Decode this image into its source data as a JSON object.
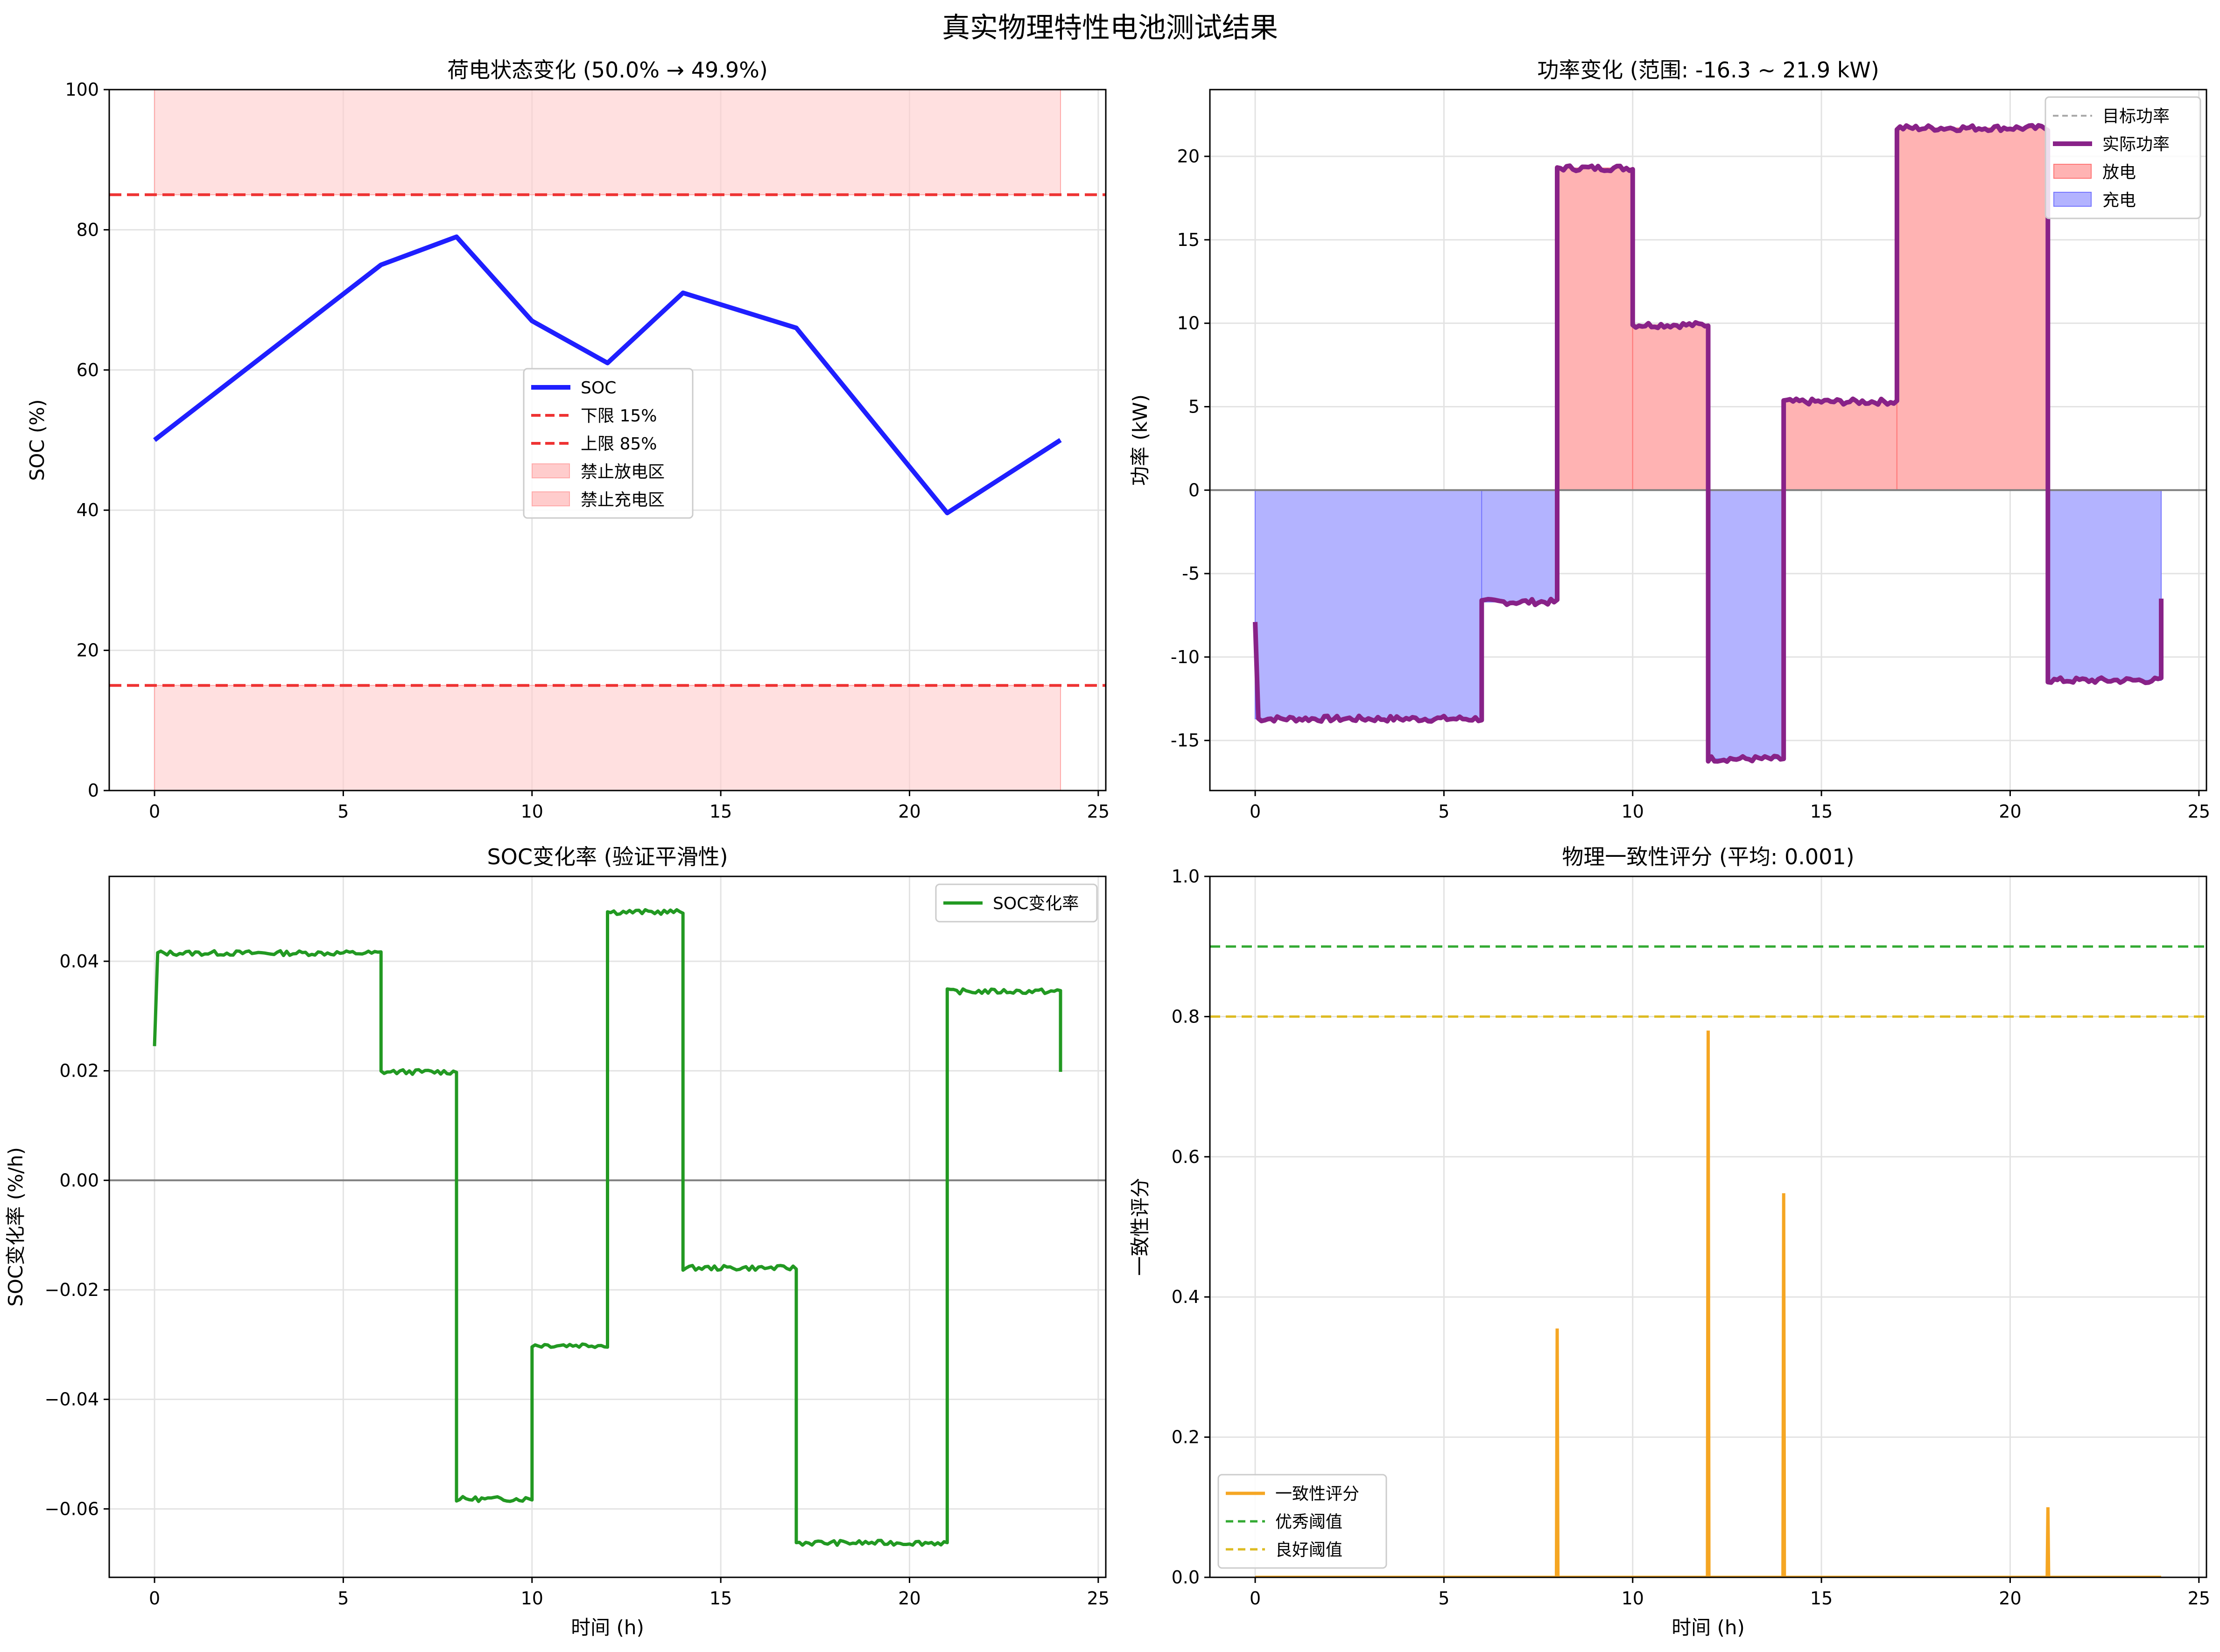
{
  "figure": {
    "title": "真实物理特性电池测试结果"
  },
  "chart_data": [
    {
      "id": "soc",
      "type": "line",
      "title": "荷电状态变化 (50.0% → 49.9%)",
      "xlabel": "",
      "ylabel": "SOC (%)",
      "xlim": [
        -1.2,
        25.2
      ],
      "ylim": [
        0,
        100
      ],
      "xticks": [
        0,
        5,
        10,
        15,
        20,
        25
      ],
      "yticks": [
        0,
        20,
        40,
        60,
        80,
        100
      ],
      "grid": true,
      "legend_position": "center",
      "series": [
        {
          "name": "SOC",
          "color": "#1f1fff",
          "x": [
            0,
            6,
            8,
            10,
            12,
            14,
            17,
            21,
            24
          ],
          "y": [
            50,
            75,
            79,
            67,
            61,
            71,
            66,
            39.6,
            50
          ]
        }
      ],
      "hlines": [
        {
          "name": "下限 15%",
          "y": 15,
          "color": "#ee3333",
          "style": "dashed"
        },
        {
          "name": "上限 85%",
          "y": 85,
          "color": "#ee3333",
          "style": "dashed"
        }
      ],
      "bands": [
        {
          "name": "禁止放电区",
          "x": [
            0,
            24
          ],
          "y": [
            0,
            15
          ],
          "color": "#ffcccc"
        },
        {
          "name": "禁止充电区",
          "x": [
            0,
            24
          ],
          "y": [
            85,
            100
          ],
          "color": "#ffcccc"
        }
      ],
      "legend": [
        "SOC",
        "下限 15%",
        "上限 85%",
        "禁止放电区",
        "禁止充电区"
      ]
    },
    {
      "id": "power",
      "type": "area",
      "title": "功率变化 (范围: -16.3 ~ 21.9 kW)",
      "xlabel": "",
      "ylabel": "功率 (kW)",
      "xlim": [
        -1.2,
        25.2
      ],
      "ylim": [
        -18,
        24
      ],
      "xticks": [
        0,
        5,
        10,
        15,
        20,
        25
      ],
      "yticks": [
        -15,
        -10,
        -5,
        0,
        5,
        10,
        15,
        20
      ],
      "grid": true,
      "legend_position": "top-right",
      "segments": [
        {
          "x": [
            0,
            6
          ],
          "value": -13.7
        },
        {
          "x": [
            6,
            8
          ],
          "value": -6.7
        },
        {
          "x": [
            8,
            10
          ],
          "value": 19.3
        },
        {
          "x": [
            10,
            12
          ],
          "value": 9.9
        },
        {
          "x": [
            12,
            14
          ],
          "value": -16.1
        },
        {
          "x": [
            14,
            17
          ],
          "value": 5.3
        },
        {
          "x": [
            17,
            21
          ],
          "value": 21.7
        },
        {
          "x": [
            21,
            24
          ],
          "value": -11.4
        }
      ],
      "start_value": -7.9,
      "end_value": -6.5,
      "colors": {
        "actual": "#882288",
        "target": "#aaaaaa",
        "discharge": "#ffb3b3",
        "charge": "#b3b3ff"
      },
      "legend": [
        "目标功率",
        "实际功率",
        "放电",
        "充电"
      ]
    },
    {
      "id": "soc_rate",
      "type": "line",
      "title": "SOC变化率 (验证平滑性)",
      "xlabel": "时间 (h)",
      "ylabel": "SOC变化率 (%/h)",
      "xlim": [
        -1.2,
        25.2
      ],
      "ylim": [
        -0.0725,
        0.0555
      ],
      "xticks": [
        0,
        5,
        10,
        15,
        20,
        25
      ],
      "yticks": [
        -0.06,
        -0.04,
        -0.02,
        0.0,
        0.02,
        0.04
      ],
      "ytick_labels": [
        "−0.06",
        "−0.04",
        "−0.02",
        "0.00",
        "0.02",
        "0.04"
      ],
      "grid": true,
      "legend_position": "top-right",
      "segments": [
        {
          "x": [
            0,
            6
          ],
          "value": 0.0415
        },
        {
          "x": [
            6,
            8
          ],
          "value": 0.0198
        },
        {
          "x": [
            8,
            10
          ],
          "value": -0.0582
        },
        {
          "x": [
            10,
            12
          ],
          "value": -0.0301
        },
        {
          "x": [
            12,
            14
          ],
          "value": 0.049
        },
        {
          "x": [
            14,
            17
          ],
          "value": -0.016
        },
        {
          "x": [
            17,
            21
          ],
          "value": -0.0662
        },
        {
          "x": [
            21,
            24
          ],
          "value": 0.0345
        }
      ],
      "start_value": 0.0245,
      "end_value": 0.0198,
      "color": "#229922",
      "legend": [
        "SOC变化率"
      ]
    },
    {
      "id": "consistency",
      "type": "line",
      "title": "物理一致性评分 (平均: 0.001)",
      "xlabel": "时间 (h)",
      "ylabel": "一致性评分",
      "xlim": [
        -1.2,
        25.2
      ],
      "ylim": [
        0,
        1.0
      ],
      "xticks": [
        0,
        5,
        10,
        15,
        20,
        25
      ],
      "yticks": [
        0.0,
        0.2,
        0.4,
        0.6,
        0.8,
        1.0
      ],
      "ytick_labels": [
        "0.0",
        "0.2",
        "0.4",
        "0.6",
        "0.8",
        "1.0"
      ],
      "grid": true,
      "legend_position": "bottom-left",
      "spikes": [
        {
          "x": 8,
          "y": 0.355
        },
        {
          "x": 12,
          "y": 0.78
        },
        {
          "x": 14,
          "y": 0.548
        },
        {
          "x": 21,
          "y": 0.1
        }
      ],
      "x_range": [
        0,
        24
      ],
      "hlines": [
        {
          "name": "优秀阈值",
          "y": 0.9,
          "color": "#33aa33",
          "style": "dashed"
        },
        {
          "name": "良好阈值",
          "y": 0.8,
          "color": "#ddbb22",
          "style": "dashed"
        }
      ],
      "color": "#f5a623",
      "legend": [
        "一致性评分",
        "优秀阈值",
        "良好阈值"
      ]
    }
  ]
}
